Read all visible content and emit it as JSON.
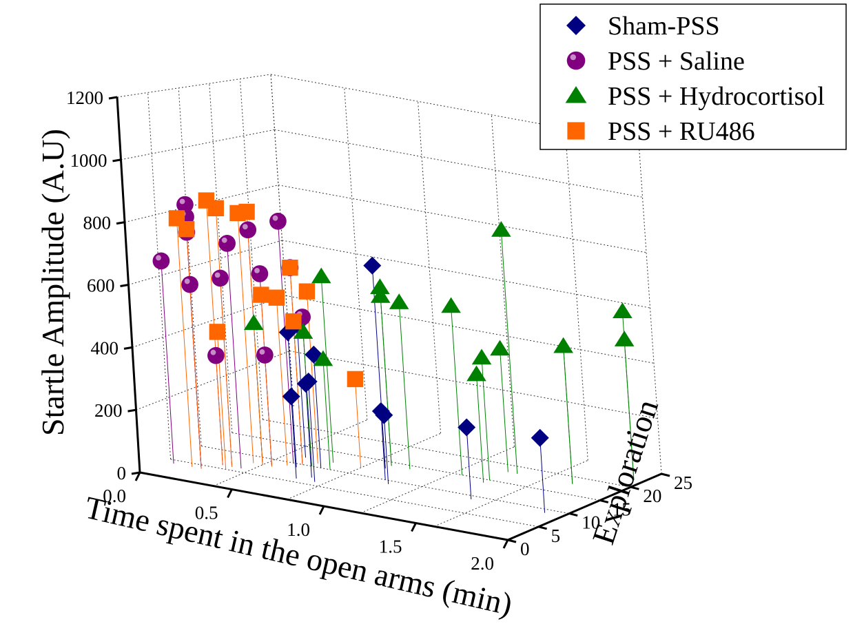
{
  "chart_data": {
    "type": "scatter3d",
    "title": "",
    "xlabel": "Time spent in the open arms (min)",
    "ylabel": "Exploration",
    "zlabel": "Startle Amplitude (A.U)",
    "xlim": [
      0,
      2
    ],
    "ylim": [
      0,
      25
    ],
    "zlim": [
      0,
      1200
    ],
    "x_ticks": [
      "0.0",
      "0.5",
      "1.0",
      "1.5",
      "2.0"
    ],
    "y_ticks": [
      "0",
      "5",
      "10",
      "15",
      "20",
      "25"
    ],
    "z_ticks": [
      "0",
      "200",
      "400",
      "600",
      "800",
      "1000",
      "1200"
    ],
    "legend_position": "top-right",
    "series": [
      {
        "name": "Sham-PSS",
        "color": "#000080",
        "marker": "diamond",
        "points": [
          {
            "x": 0.5,
            "y": 12,
            "z": 450
          },
          {
            "x": 0.55,
            "y": 9,
            "z": 450
          },
          {
            "x": 0.65,
            "y": 10,
            "z": 380
          },
          {
            "x": 0.7,
            "y": 7,
            "z": 310
          },
          {
            "x": 0.65,
            "y": 6,
            "z": 270
          },
          {
            "x": 0.75,
            "y": 6,
            "z": 330
          },
          {
            "x": 0.9,
            "y": 13,
            "z": 690
          },
          {
            "x": 1.0,
            "y": 10,
            "z": 230
          },
          {
            "x": 1.05,
            "y": 9,
            "z": 230
          },
          {
            "x": 1.5,
            "y": 9,
            "z": 240
          },
          {
            "x": 1.9,
            "y": 9,
            "z": 250
          }
        ]
      },
      {
        "name": "PSS + Saline",
        "color": "#800080",
        "marker": "sphere",
        "points": [
          {
            "x": 0.05,
            "y": 4,
            "z": 660
          },
          {
            "x": 0.2,
            "y": 4,
            "z": 860
          },
          {
            "x": 0.25,
            "y": 6,
            "z": 360
          },
          {
            "x": 0.2,
            "y": 4,
            "z": 770
          },
          {
            "x": 0.2,
            "y": 4,
            "z": 820
          },
          {
            "x": 0.2,
            "y": 4,
            "z": 600
          },
          {
            "x": 0.3,
            "y": 6,
            "z": 620
          },
          {
            "x": 0.35,
            "y": 6,
            "z": 740
          },
          {
            "x": 0.4,
            "y": 8,
            "z": 780
          },
          {
            "x": 0.45,
            "y": 8,
            "z": 370
          },
          {
            "x": 0.45,
            "y": 8,
            "z": 640
          },
          {
            "x": 0.5,
            "y": 10,
            "z": 810
          },
          {
            "x": 0.55,
            "y": 10,
            "z": 660
          },
          {
            "x": 0.6,
            "y": 10,
            "z": 500
          }
        ]
      },
      {
        "name": "PSS + Hydrocortisol",
        "color": "#008000",
        "marker": "triangle",
        "points": [
          {
            "x": 0.4,
            "y": 8,
            "z": 470
          },
          {
            "x": 0.6,
            "y": 10,
            "z": 450
          },
          {
            "x": 0.65,
            "y": 12,
            "z": 630
          },
          {
            "x": 0.7,
            "y": 10,
            "z": 370
          },
          {
            "x": 0.9,
            "y": 14,
            "z": 610
          },
          {
            "x": 0.9,
            "y": 14,
            "z": 580
          },
          {
            "x": 1.0,
            "y": 14,
            "z": 570
          },
          {
            "x": 1.25,
            "y": 15,
            "z": 580
          },
          {
            "x": 1.45,
            "y": 18,
            "z": 850
          },
          {
            "x": 1.4,
            "y": 18,
            "z": 430
          },
          {
            "x": 1.4,
            "y": 15,
            "z": 420
          },
          {
            "x": 1.4,
            "y": 14,
            "z": 370
          },
          {
            "x": 1.75,
            "y": 18,
            "z": 480
          },
          {
            "x": 1.75,
            "y": 18,
            "z": 480
          },
          {
            "x": 1.95,
            "y": 22,
            "z": 600
          },
          {
            "x": 1.95,
            "y": 22,
            "z": 500
          }
        ]
      },
      {
        "name": "PSS + RU486",
        "color": "#ff6600",
        "marker": "square",
        "points": [
          {
            "x": 0.15,
            "y": 4,
            "z": 810
          },
          {
            "x": 0.2,
            "y": 4,
            "z": 780
          },
          {
            "x": 0.25,
            "y": 6,
            "z": 870
          },
          {
            "x": 0.3,
            "y": 6,
            "z": 850
          },
          {
            "x": 0.35,
            "y": 8,
            "z": 830
          },
          {
            "x": 0.4,
            "y": 8,
            "z": 840
          },
          {
            "x": 0.3,
            "y": 5,
            "z": 450
          },
          {
            "x": 0.45,
            "y": 8,
            "z": 570
          },
          {
            "x": 0.5,
            "y": 9,
            "z": 560
          },
          {
            "x": 0.55,
            "y": 10,
            "z": 660
          },
          {
            "x": 0.55,
            "y": 10,
            "z": 480
          },
          {
            "x": 0.6,
            "y": 11,
            "z": 580
          },
          {
            "x": 0.8,
            "y": 12,
            "z": 300
          }
        ]
      }
    ]
  }
}
